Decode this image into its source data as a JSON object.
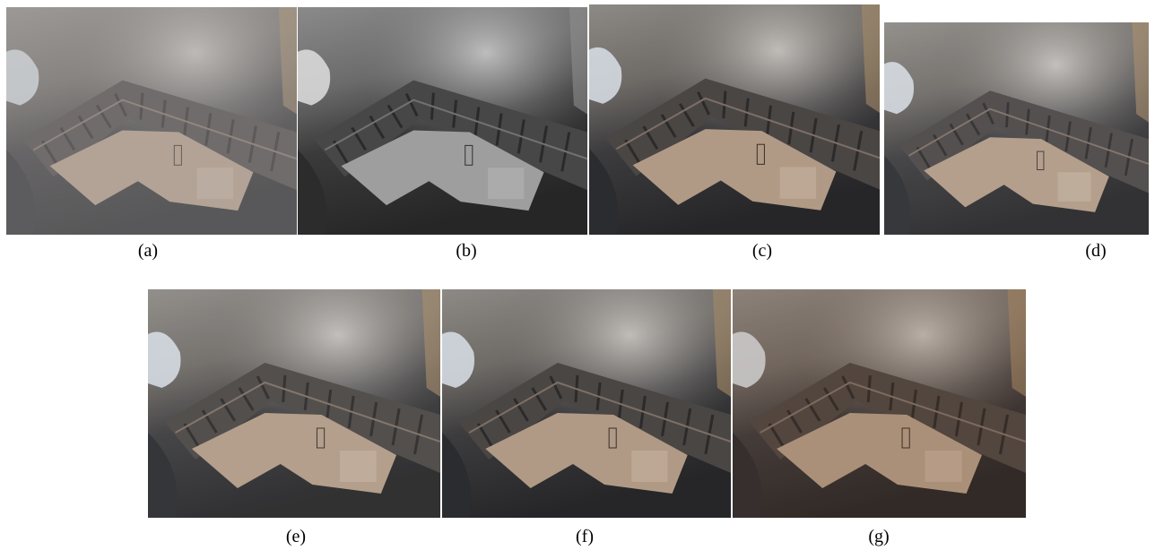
{
  "panels": [
    {
      "caption": "(a)"
    },
    {
      "caption": "(b)"
    },
    {
      "caption": "(c)"
    },
    {
      "caption": "(d)"
    },
    {
      "caption": "(e)"
    },
    {
      "caption": "(f)"
    },
    {
      "caption": "(g)"
    }
  ]
}
